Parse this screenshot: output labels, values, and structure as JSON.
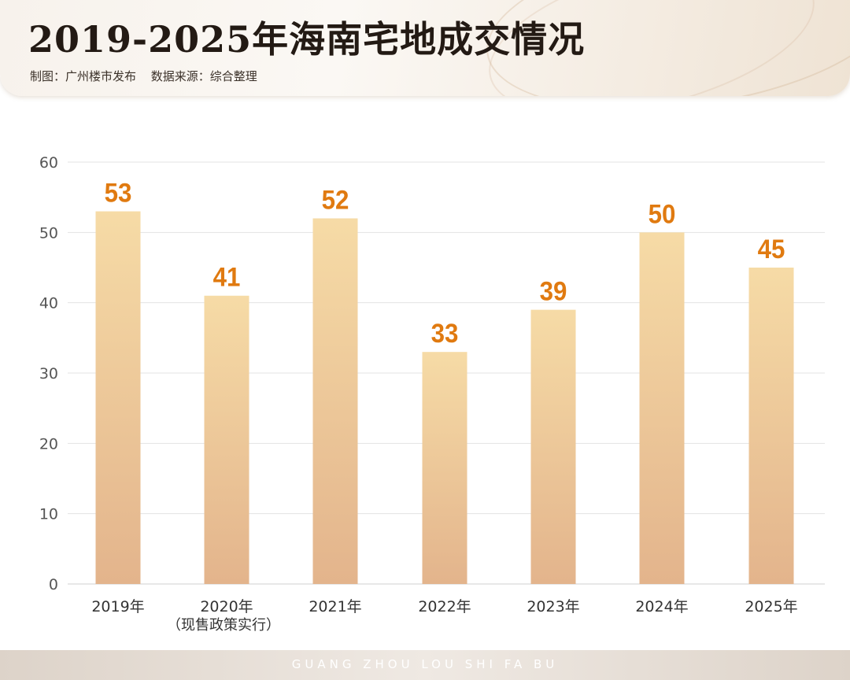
{
  "header": {
    "title": "2019-2025年海南宅地成交情况",
    "credit": "制图：广州楼市发布",
    "source": "数据来源：综合整理"
  },
  "footer": {
    "text": "GUANG ZHOU LOU SHI FA BU"
  },
  "colors": {
    "bar_top": "#f6dba6",
    "bar_bottom": "#e3b48c",
    "value_label": "#e07a10",
    "axis_text": "#555555",
    "grid": "#e3e3e3"
  },
  "chart_data": {
    "type": "bar",
    "categories": [
      "2019年",
      "2020年",
      "2021年",
      "2022年",
      "2023年",
      "2024年",
      "2025年"
    ],
    "category_notes": [
      "",
      "（现售政策实行）",
      "",
      "",
      "",
      "",
      ""
    ],
    "values": [
      53,
      41,
      52,
      33,
      39,
      50,
      45
    ],
    "title": "2019-2025年海南宅地成交情况",
    "xlabel": "",
    "ylabel": "",
    "ylim": [
      0,
      60
    ],
    "yticks": [
      0,
      10,
      20,
      30,
      40,
      50,
      60
    ],
    "grid": true,
    "legend": "none"
  }
}
